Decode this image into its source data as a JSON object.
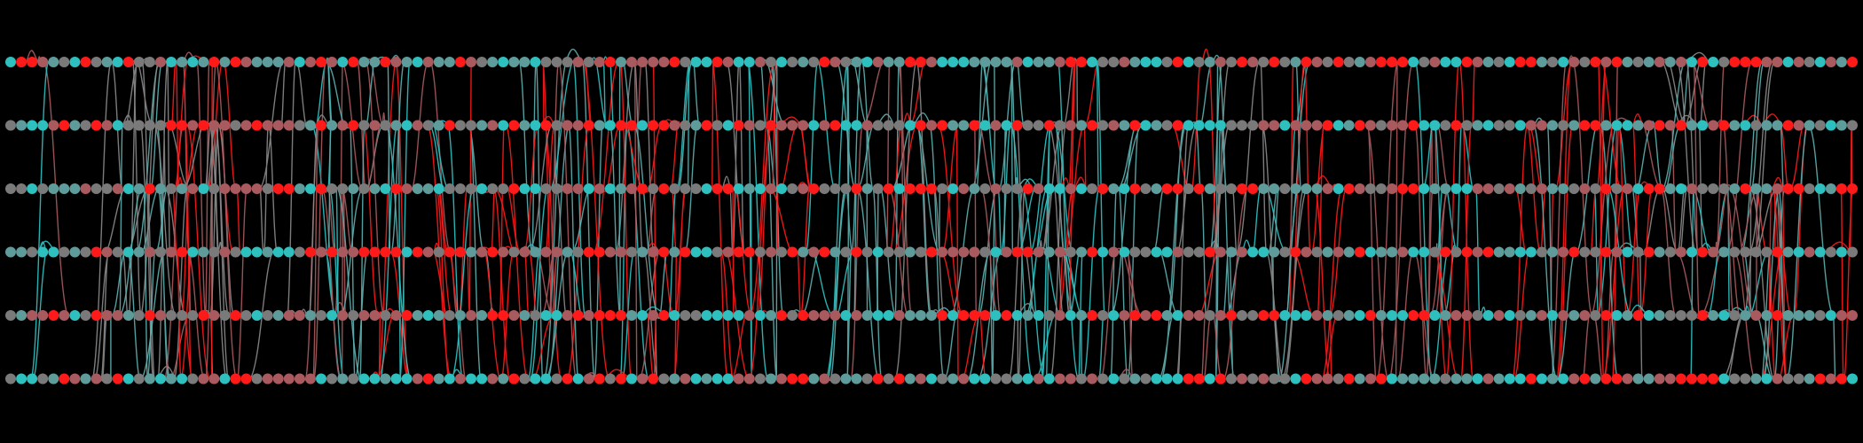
{
  "figure": {
    "type": "parallel-track-network",
    "background_color": "#000000",
    "track_count": 6,
    "nodes_per_track": 173,
    "node_colors": [
      "#ff1a1a",
      "#a85a5e",
      "#7a7a7a",
      "#5e9c9c",
      "#2ebfbf"
    ],
    "edge_colors": [
      "#ff1a1a",
      "#a85a5e",
      "#8a8a8a",
      "#5eb0b0",
      "#2ec4c4"
    ],
    "edge_style": "smooth oscillating curves connecting nodes across tracks",
    "legend": "none",
    "axes": "none"
  }
}
